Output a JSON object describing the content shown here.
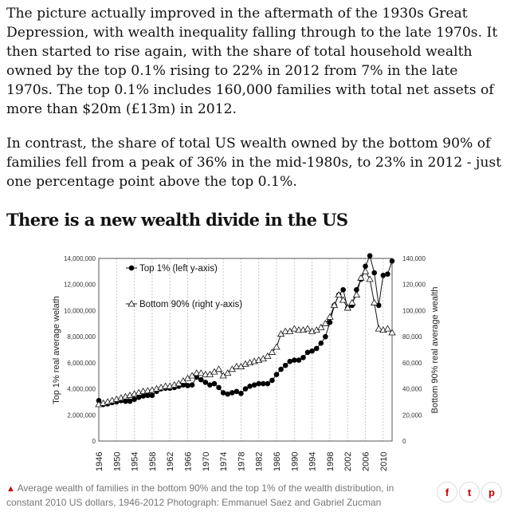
{
  "article": {
    "paragraph1": "The picture actually improved in the aftermath of the 1930s Great Depression, with wealth inequality falling through to the late 1970s. It then started to rise again, with the share of total household wealth owned by the top 0.1% rising to 22% in 2012 from 7% in the late 1970s. The top 0.1% includes 160,000 families with total net assets of more than $20m (£13m) in 2012.",
    "paragraph2": "In contrast, the share of total US wealth owned by the bottom 90% of families fell from a peak of 36% in the mid-1980s, to 23% in 2012 - just one percentage point above the top 0.1%.",
    "chart_heading": "There is a new wealth divide in the US",
    "caption_marker": "▲",
    "caption": "Average wealth of families in the bottom 90% and the top 1% of the wealth distribution, in constant 2010 US dollars, 1946-2012 Photograph: Emmanuel Saez and Gabriel Zucman"
  },
  "share": {
    "facebook": "f",
    "twitter": "t",
    "pinterest": "p"
  },
  "colors": {
    "accent": "#c70000",
    "caption": "#767676",
    "text": "#121212"
  },
  "chart_data": {
    "type": "line",
    "title": "",
    "x": [
      1946,
      1947,
      1948,
      1949,
      1950,
      1951,
      1952,
      1953,
      1954,
      1955,
      1956,
      1957,
      1958,
      1959,
      1960,
      1961,
      1962,
      1963,
      1964,
      1965,
      1966,
      1967,
      1968,
      1969,
      1970,
      1971,
      1972,
      1973,
      1974,
      1975,
      1976,
      1977,
      1978,
      1979,
      1980,
      1981,
      1982,
      1983,
      1984,
      1985,
      1986,
      1987,
      1988,
      1989,
      1990,
      1991,
      1992,
      1993,
      1994,
      1995,
      1996,
      1997,
      1998,
      1999,
      2000,
      2001,
      2002,
      2003,
      2004,
      2005,
      2006,
      2007,
      2008,
      2009,
      2010,
      2011,
      2012
    ],
    "x_ticks": [
      1946,
      1950,
      1954,
      1958,
      1962,
      1966,
      1970,
      1974,
      1978,
      1982,
      1986,
      1990,
      1994,
      1998,
      2002,
      2006,
      2010
    ],
    "series": [
      {
        "name": "Top 1% (left y-axis)",
        "axis": "left",
        "marker": "filled-circle",
        "values": [
          3100000,
          2800000,
          2850000,
          2950000,
          3000000,
          3100000,
          3050000,
          3050000,
          3200000,
          3350000,
          3450000,
          3500000,
          3500000,
          3800000,
          4000000,
          4050000,
          4050000,
          4100000,
          4200000,
          4300000,
          4250000,
          4300000,
          4900000,
          4700000,
          4500000,
          4300000,
          4400000,
          4100000,
          3700000,
          3600000,
          3700000,
          3800000,
          3650000,
          4000000,
          4200000,
          4300000,
          4400000,
          4400000,
          4400000,
          4650000,
          5100000,
          5500000,
          5800000,
          6100000,
          6200000,
          6200000,
          6400000,
          6800000,
          6900000,
          7100000,
          7500000,
          8000000,
          9100000,
          10400000,
          11200000,
          11600000,
          10200000,
          10400000,
          11600000,
          12400000,
          13400000,
          14200000,
          12900000,
          10400000,
          12700000,
          12800000,
          13800000
        ]
      },
      {
        "name": "Bottom 90% (right y-axis)",
        "axis": "right",
        "marker": "open-triangle",
        "values": [
          28000,
          29000,
          30000,
          31000,
          32000,
          33000,
          34000,
          35000,
          36000,
          37000,
          38000,
          38500,
          39000,
          40000,
          41000,
          42000,
          42000,
          43000,
          44000,
          46000,
          48000,
          50000,
          52000,
          52000,
          51000,
          51000,
          53000,
          55000,
          50000,
          52000,
          55000,
          57000,
          57000,
          59000,
          60000,
          61000,
          62000,
          63000,
          65000,
          68000,
          72000,
          82000,
          84000,
          84000,
          86000,
          85000,
          85000,
          86000,
          84000,
          85000,
          87000,
          90000,
          95000,
          104000,
          112000,
          108000,
          102000,
          106000,
          112000,
          125000,
          130000,
          124000,
          106000,
          86000,
          85000,
          86000,
          83000
        ]
      }
    ],
    "ylabel": "Top 1% real average welath",
    "ylabel_right": "Bottom 90% real average wealth",
    "ylim": [
      0,
      14000000
    ],
    "ylim_right": [
      0,
      140000
    ],
    "yticks_left": [
      "0",
      "2,000,000",
      "4,000,000",
      "6,000,000",
      "8,000,000",
      "10,000,000",
      "12,000,000",
      "14,000,000"
    ],
    "yticks_right": [
      "0",
      "20,000",
      "40,000",
      "60,000",
      "80,000",
      "100,000",
      "120,000",
      "140,000"
    ],
    "legend": [
      "Top 1% (left y-axis)",
      "Bottom 90% (right y-axis)"
    ],
    "legend_position": "top-left",
    "grid": "vertical-dashed"
  }
}
